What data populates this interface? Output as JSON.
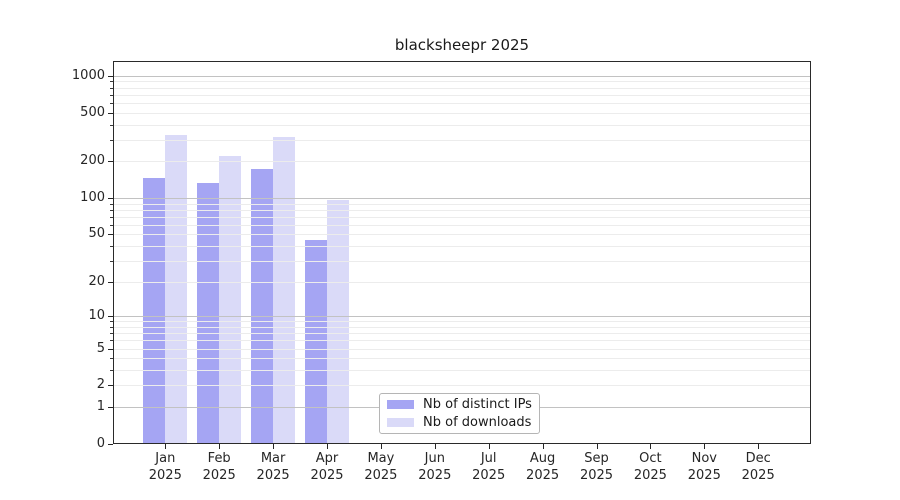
{
  "chart_data": {
    "type": "bar",
    "title": "blacksheepr 2025",
    "x_categories": [
      "Jan",
      "Feb",
      "Mar",
      "Apr",
      "May",
      "Jun",
      "Jul",
      "Aug",
      "Sep",
      "Oct",
      "Nov",
      "Dec"
    ],
    "x_year": "2025",
    "series": [
      {
        "name": "Nb of distinct IPs",
        "color": "#a5a5f3",
        "values": [
          146,
          134,
          172,
          45,
          null,
          null,
          null,
          null,
          null,
          null,
          null,
          null
        ]
      },
      {
        "name": "Nb of downloads",
        "color": "#dadaf8",
        "values": [
          330,
          220,
          315,
          97,
          null,
          null,
          null,
          null,
          null,
          null,
          null,
          null
        ]
      }
    ],
    "y_ticks": [
      0,
      1,
      2,
      5,
      10,
      20,
      50,
      100,
      200,
      500,
      1000
    ],
    "y_scale": "log1p",
    "ylim": [
      0,
      1300
    ],
    "grid": true,
    "legend": {
      "entries": [
        "Nb of distinct IPs",
        "Nb of downloads"
      ],
      "position": "lower-center"
    }
  },
  "colors": {
    "bar_distinct_ips": "#a5a5f3",
    "bar_downloads": "#dadaf8",
    "grid_major": "#c2c2c2",
    "grid_minor": "#ececec",
    "spine": "#2a2a2a",
    "text": "#262626",
    "legend_border": "#b5b5b5",
    "background": "#ffffff"
  }
}
